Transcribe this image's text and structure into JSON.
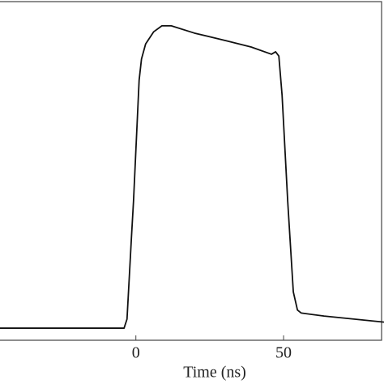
{
  "chart_data": {
    "type": "line",
    "xlabel": "Time (ns)",
    "x": [
      -46,
      -4,
      -3,
      -1.5,
      -0.8,
      1.1,
      1.9,
      3.3,
      6,
      8.8,
      12,
      19.8,
      30.8,
      39,
      45.9,
      47.3,
      48.4,
      49.5,
      51.4,
      53.3,
      54.7,
      56,
      63.7,
      84
    ],
    "series": [
      {
        "color": "#111111",
        "values": [
          0,
          0,
          0.03,
          0.3,
          0.42,
          0.82,
          0.89,
          0.94,
          0.98,
          1.0,
          1.0,
          0.976,
          0.95,
          0.93,
          0.906,
          0.914,
          0.9,
          0.77,
          0.42,
          0.12,
          0.06,
          0.05,
          0.04,
          0.02
        ]
      }
    ],
    "xlim": [
      -46,
      84
    ],
    "xticks": [
      0,
      50
    ],
    "ylim": [
      -0.04,
      1.08
    ]
  }
}
